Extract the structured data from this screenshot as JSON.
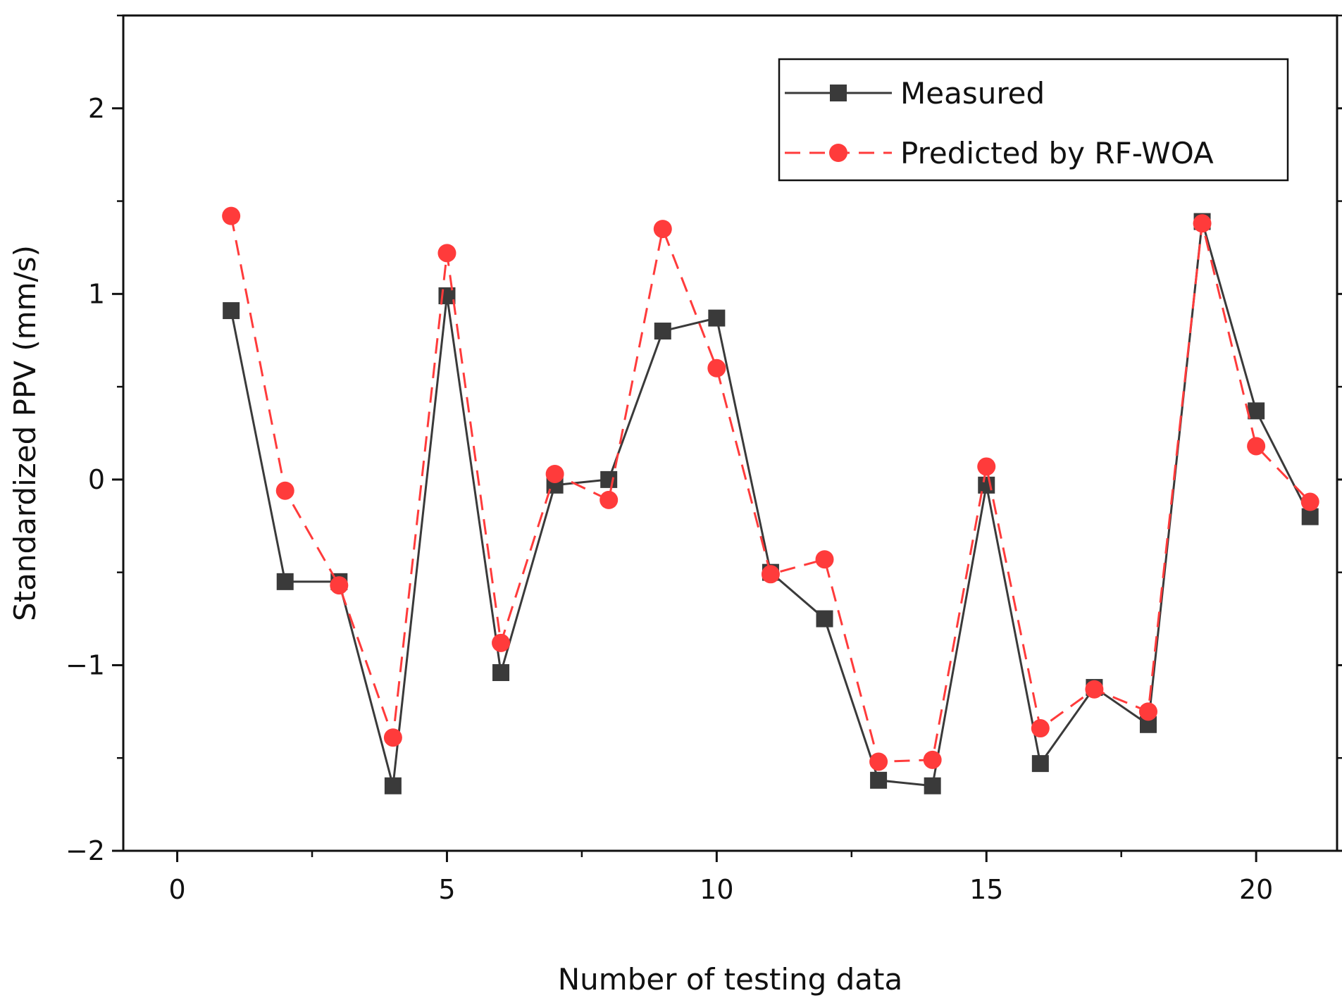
{
  "chart_data": {
    "type": "line",
    "xlabel": "Number of testing data",
    "ylabel": "Standardized PPV (mm/s)",
    "xlim": [
      -1,
      21.5
    ],
    "ylim": [
      -2,
      2.5
    ],
    "x_ticks": [
      0,
      5,
      10,
      15,
      20
    ],
    "y_ticks": [
      -2,
      -1,
      0,
      1,
      2
    ],
    "legend_position": "top-right",
    "x": [
      1,
      2,
      3,
      4,
      5,
      6,
      7,
      8,
      9,
      10,
      11,
      12,
      13,
      14,
      15,
      16,
      17,
      18,
      19,
      20,
      21
    ],
    "series": [
      {
        "name": "Measured",
        "color": "#3a3a3a",
        "line_style": "solid",
        "marker": "square",
        "values": [
          0.91,
          -0.55,
          -0.55,
          -1.65,
          0.99,
          -1.04,
          -0.03,
          0.0,
          0.8,
          0.87,
          -0.5,
          -0.75,
          -1.62,
          -1.65,
          -0.03,
          -1.53,
          -1.12,
          -1.32,
          1.39,
          0.37,
          -0.2
        ]
      },
      {
        "name": "Predicted by RF-WOA",
        "color": "#ff3b3b",
        "line_style": "dashed",
        "marker": "circle",
        "values": [
          1.42,
          -0.06,
          -0.57,
          -1.39,
          1.22,
          -0.88,
          0.03,
          -0.11,
          1.35,
          0.6,
          -0.51,
          -0.43,
          -1.52,
          -1.51,
          0.07,
          -1.34,
          -1.13,
          -1.25,
          1.38,
          0.18,
          -0.12
        ]
      }
    ]
  }
}
